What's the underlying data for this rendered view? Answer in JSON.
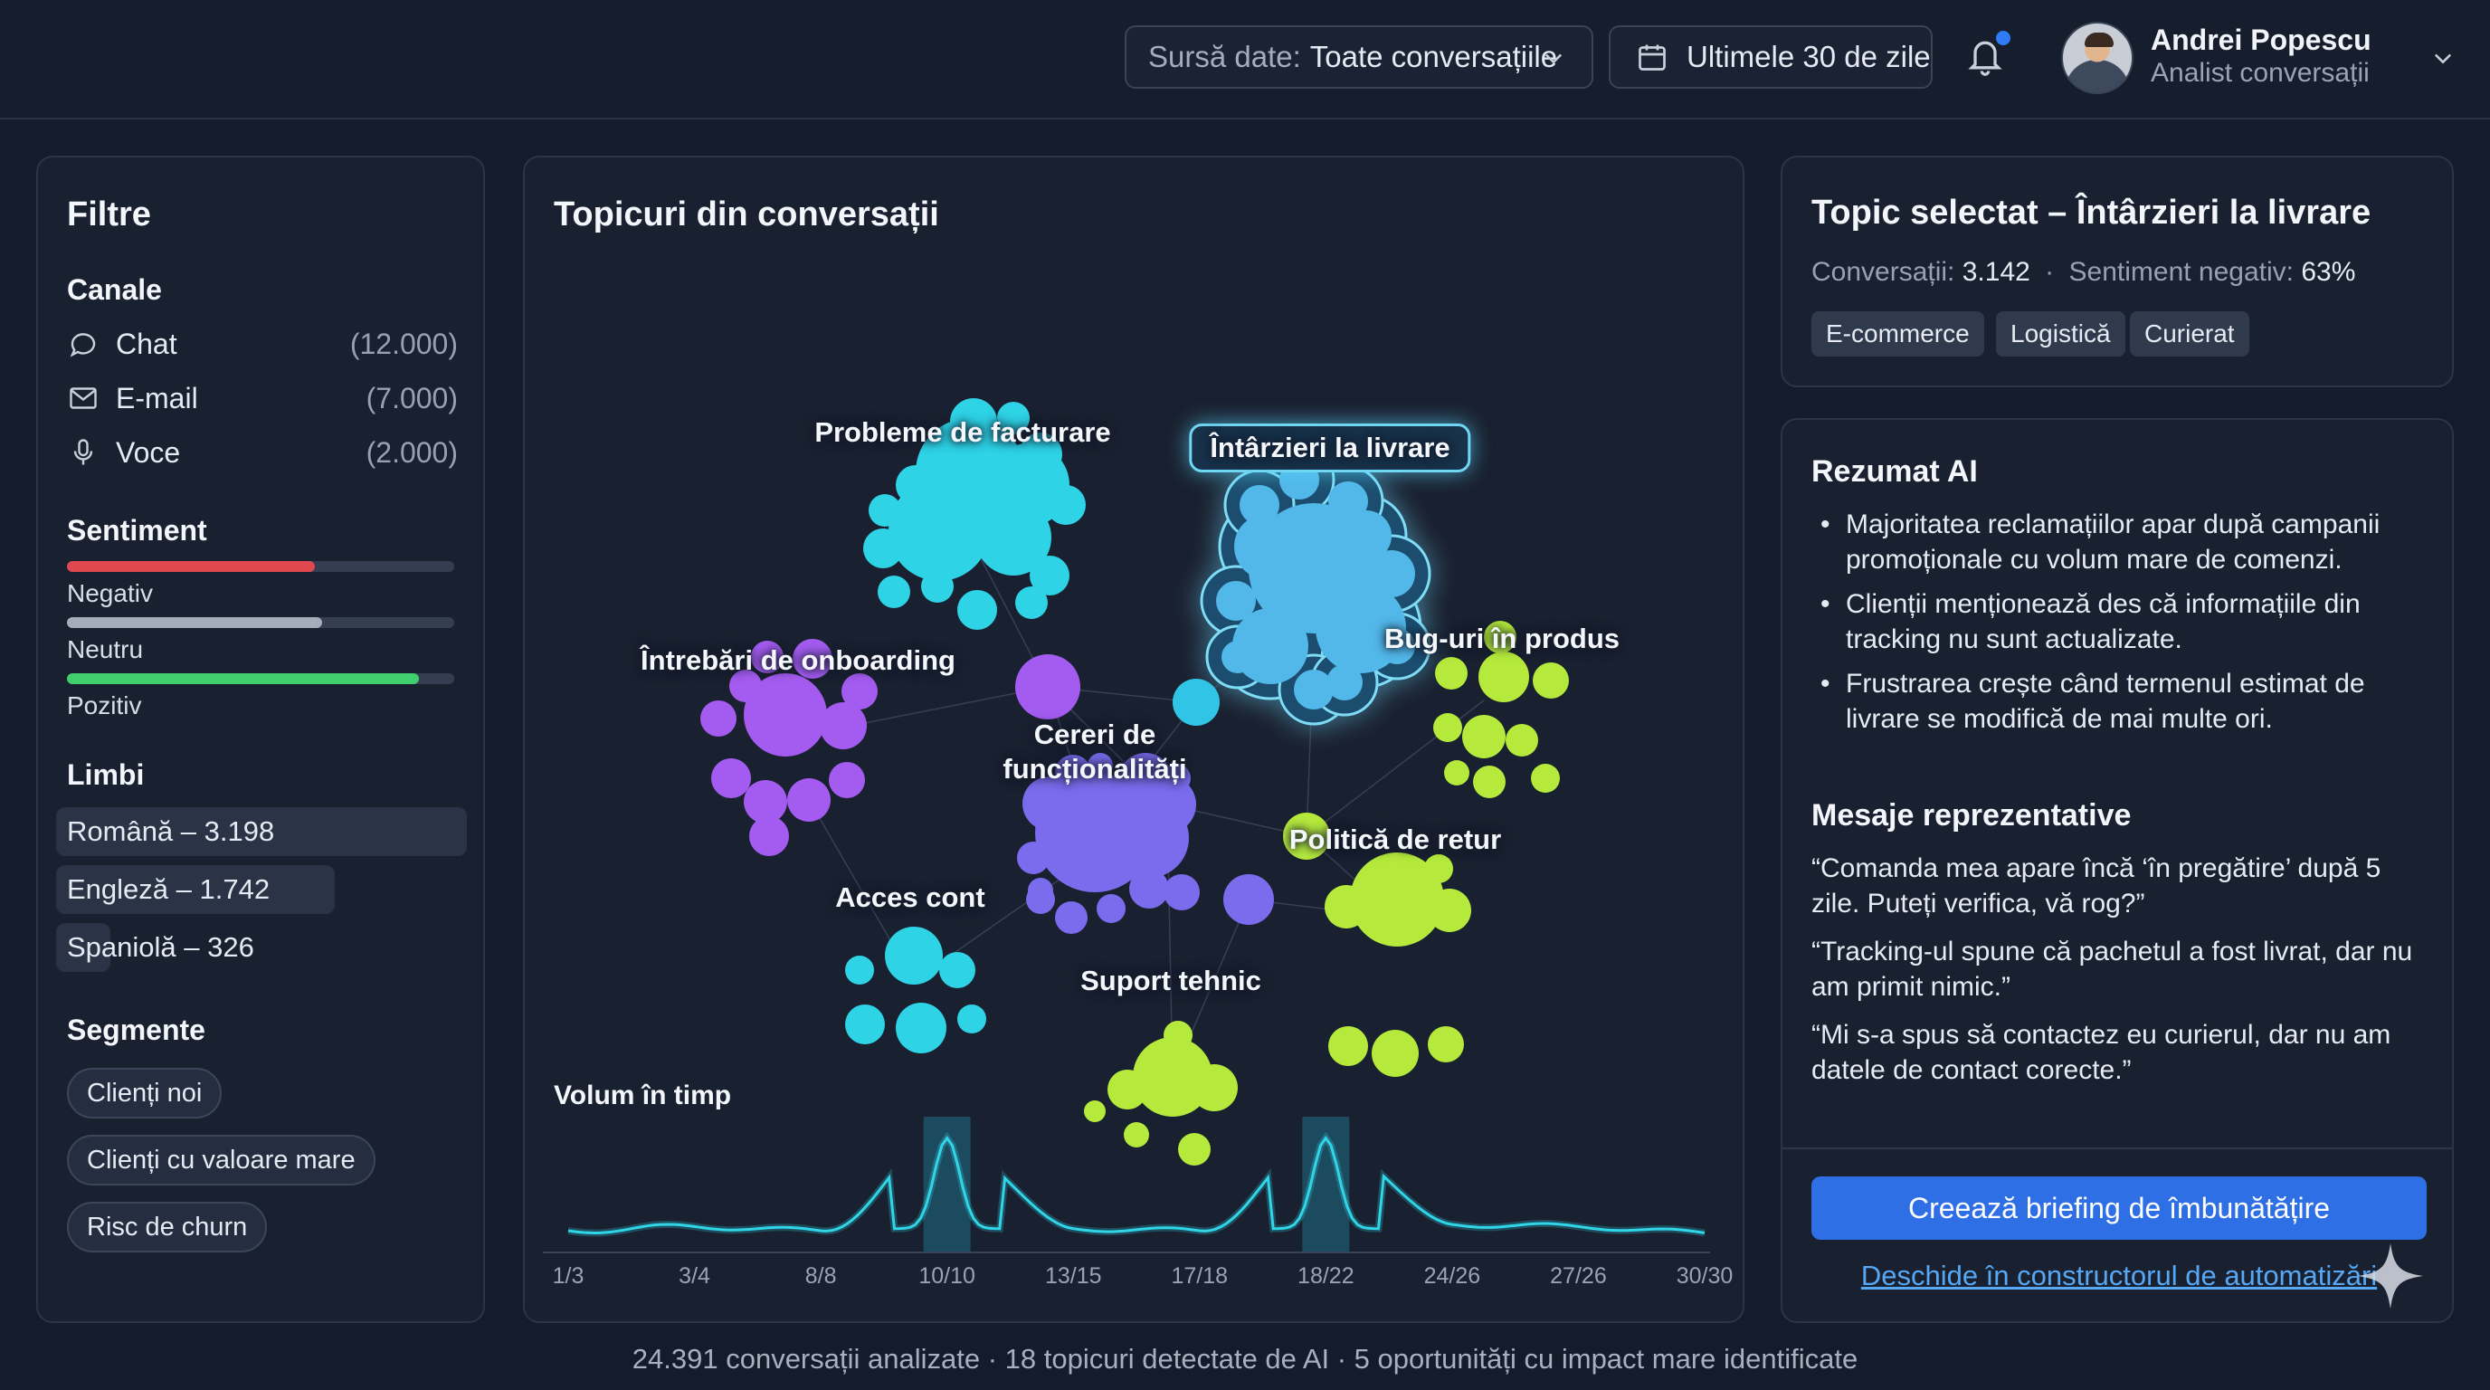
{
  "header": {
    "source_label": "Sursă date:",
    "source_value": "Toate conversațiile",
    "date_range": "Ultimele 30 de zile",
    "user_name": "Andrei Popescu",
    "user_role": "Analist conversații",
    "icons": [
      "chevron-down-icon",
      "calendar-icon",
      "bell-icon"
    ]
  },
  "filters": {
    "title": "Filtre",
    "channels_title": "Canale",
    "channels": [
      {
        "label": "Chat",
        "count": "(12.000)",
        "icon": "chat-icon"
      },
      {
        "label": "E-mail",
        "count": "(7.000)",
        "icon": "mail-icon"
      },
      {
        "label": "Voce",
        "count": "(2.000)",
        "icon": "microphone-icon"
      }
    ],
    "sentiment_title": "Sentiment",
    "sentiment": [
      {
        "label": "Negativ",
        "value": 0.64,
        "color": "#e0484f"
      },
      {
        "label": "Neutru",
        "value": 0.66,
        "color": "#a7adb8"
      },
      {
        "label": "Pozitiv",
        "value": 0.91,
        "color": "#3fcf6e"
      }
    ],
    "languages_title": "Limbi",
    "languages": [
      {
        "label": "Română – 3.198"
      },
      {
        "label": "Engleză – 1.742"
      },
      {
        "label": "Spaniolă – 326"
      }
    ],
    "segments_title": "Segmente",
    "segments": [
      "Clienți noi",
      "Clienți cu valoare mare",
      "Risc de churn"
    ]
  },
  "main": {
    "title": "Topicuri din conversații",
    "topics": [
      {
        "label": "Probleme de facturare",
        "color": "#2ed3e6"
      },
      {
        "label": "Întârzieri la livrare",
        "color": "#52b8ea",
        "selected": true
      },
      {
        "label": "Întrebări de onboarding",
        "color": "#a45cf0"
      },
      {
        "label": "Bug-uri în produs",
        "color": "#b5ea3c"
      },
      {
        "label": "Cereri de",
        "label2": "funcționalități",
        "color": "#7a6cec"
      },
      {
        "label": "Acces cont",
        "color": "#2ed3e6"
      },
      {
        "label": "Politică de retur",
        "color": "#b5ea3c"
      },
      {
        "label": "Suport tehnic",
        "color": "#b5ea3c"
      }
    ],
    "volume_title": "Volum în timp",
    "axis_ticks": [
      "1/3",
      "3/4",
      "8/8",
      "10/10",
      "13/15",
      "17/18",
      "18/22",
      "24/26",
      "27/26",
      "30/30"
    ]
  },
  "chart_data": {
    "type": "line",
    "title": "Volum în timp",
    "categories": [
      "1/3",
      "3/4",
      "8/8",
      "10/10",
      "13/15",
      "17/18",
      "18/22",
      "24/26",
      "27/26",
      "30/30"
    ],
    "series": [
      {
        "name": "Volum",
        "values": [
          12,
          16,
          12,
          100,
          14,
          12,
          100,
          18,
          16,
          10
        ]
      }
    ],
    "highlighted": [
      "10/10",
      "18/22"
    ],
    "ylim": [
      0,
      110
    ]
  },
  "topic": {
    "title": "Topic selectat – Întârzieri la livrare",
    "conv_label": "Conversații:",
    "conv_value": "3.142",
    "neg_label": "Sentiment negativ:",
    "neg_value": "63%",
    "sep": "·",
    "tags": [
      "E-commerce",
      "Logistică",
      "Curierat"
    ]
  },
  "summary": {
    "title": "Rezumat AI",
    "bullets": [
      "Majoritatea reclamațiilor apar după campanii promoționale cu volum mare de comenzi.",
      "Clienții menționează des că informațiile din tracking nu sunt actualizate.",
      "Frustrarea crește când termenul estimat de livrare se modifică de mai multe ori."
    ],
    "messages_title": "Mesaje reprezentative",
    "messages": [
      "“Comanda mea apare încă ‘în pregătire’ după 5 zile. Puteți verifica, vă rog?”",
      "“Tracking-ul spune că pachetul a fost livrat, dar nu am primit nimic.”",
      "“Mi s-a spus să contactez eu curierul, dar nu am datele de contact corecte.”"
    ],
    "cta": "Creează briefing de îmbunătățire",
    "link": "Deschide în constructorul de automatizări"
  },
  "footer": {
    "text": "24.391 conversații analizate · 18 topicuri detectate de AI · 5 oportunități cu impact mare identificate"
  }
}
